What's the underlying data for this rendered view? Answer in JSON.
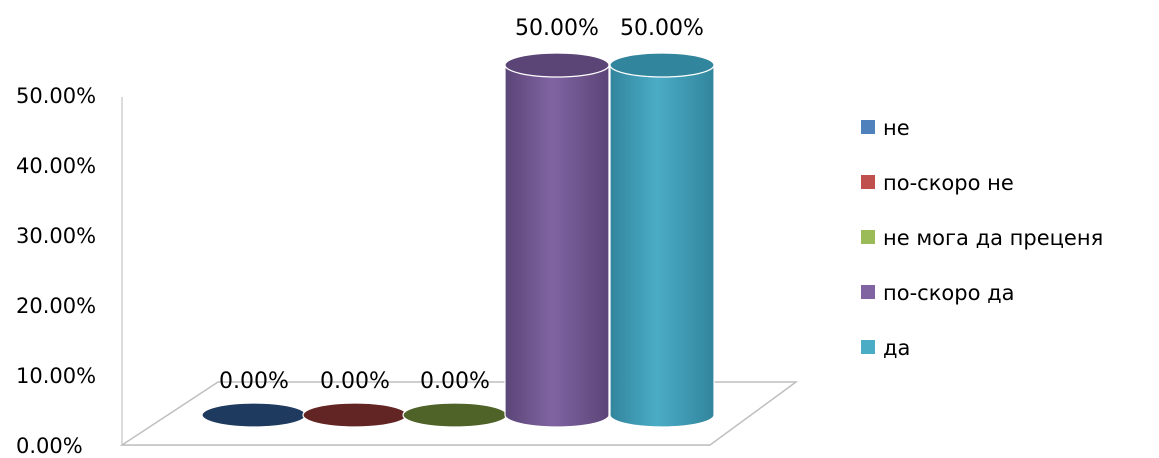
{
  "chart_data": {
    "type": "bar",
    "style": "3d-cylinder",
    "categories": [
      "не",
      "по-скоро не",
      "не мога да преценя",
      "по-скоро да",
      "да"
    ],
    "series": [
      {
        "name": "не",
        "value": 0.0,
        "label": "0.00%",
        "color": "#4F81BD",
        "dark": "#1F3A5F"
      },
      {
        "name": "по-скоро не",
        "value": 0.0,
        "label": "0.00%",
        "color": "#C0504D",
        "dark": "#632523"
      },
      {
        "name": "не мога да преценя",
        "value": 0.0,
        "label": "0.00%",
        "color": "#9BBB59",
        "dark": "#4F6228"
      },
      {
        "name": "по-скоро да",
        "value": 50.0,
        "label": "50.00%",
        "color": "#8064A2",
        "dark": "#5B4577"
      },
      {
        "name": "да",
        "value": 50.0,
        "label": "50.00%",
        "color": "#4BACC6",
        "dark": "#31859C"
      }
    ],
    "y_ticks": [
      "0.00%",
      "10.00%",
      "20.00%",
      "30.00%",
      "40.00%",
      "50.00%"
    ],
    "ylim": [
      0,
      50
    ],
    "legend_position": "right",
    "grid": false
  }
}
